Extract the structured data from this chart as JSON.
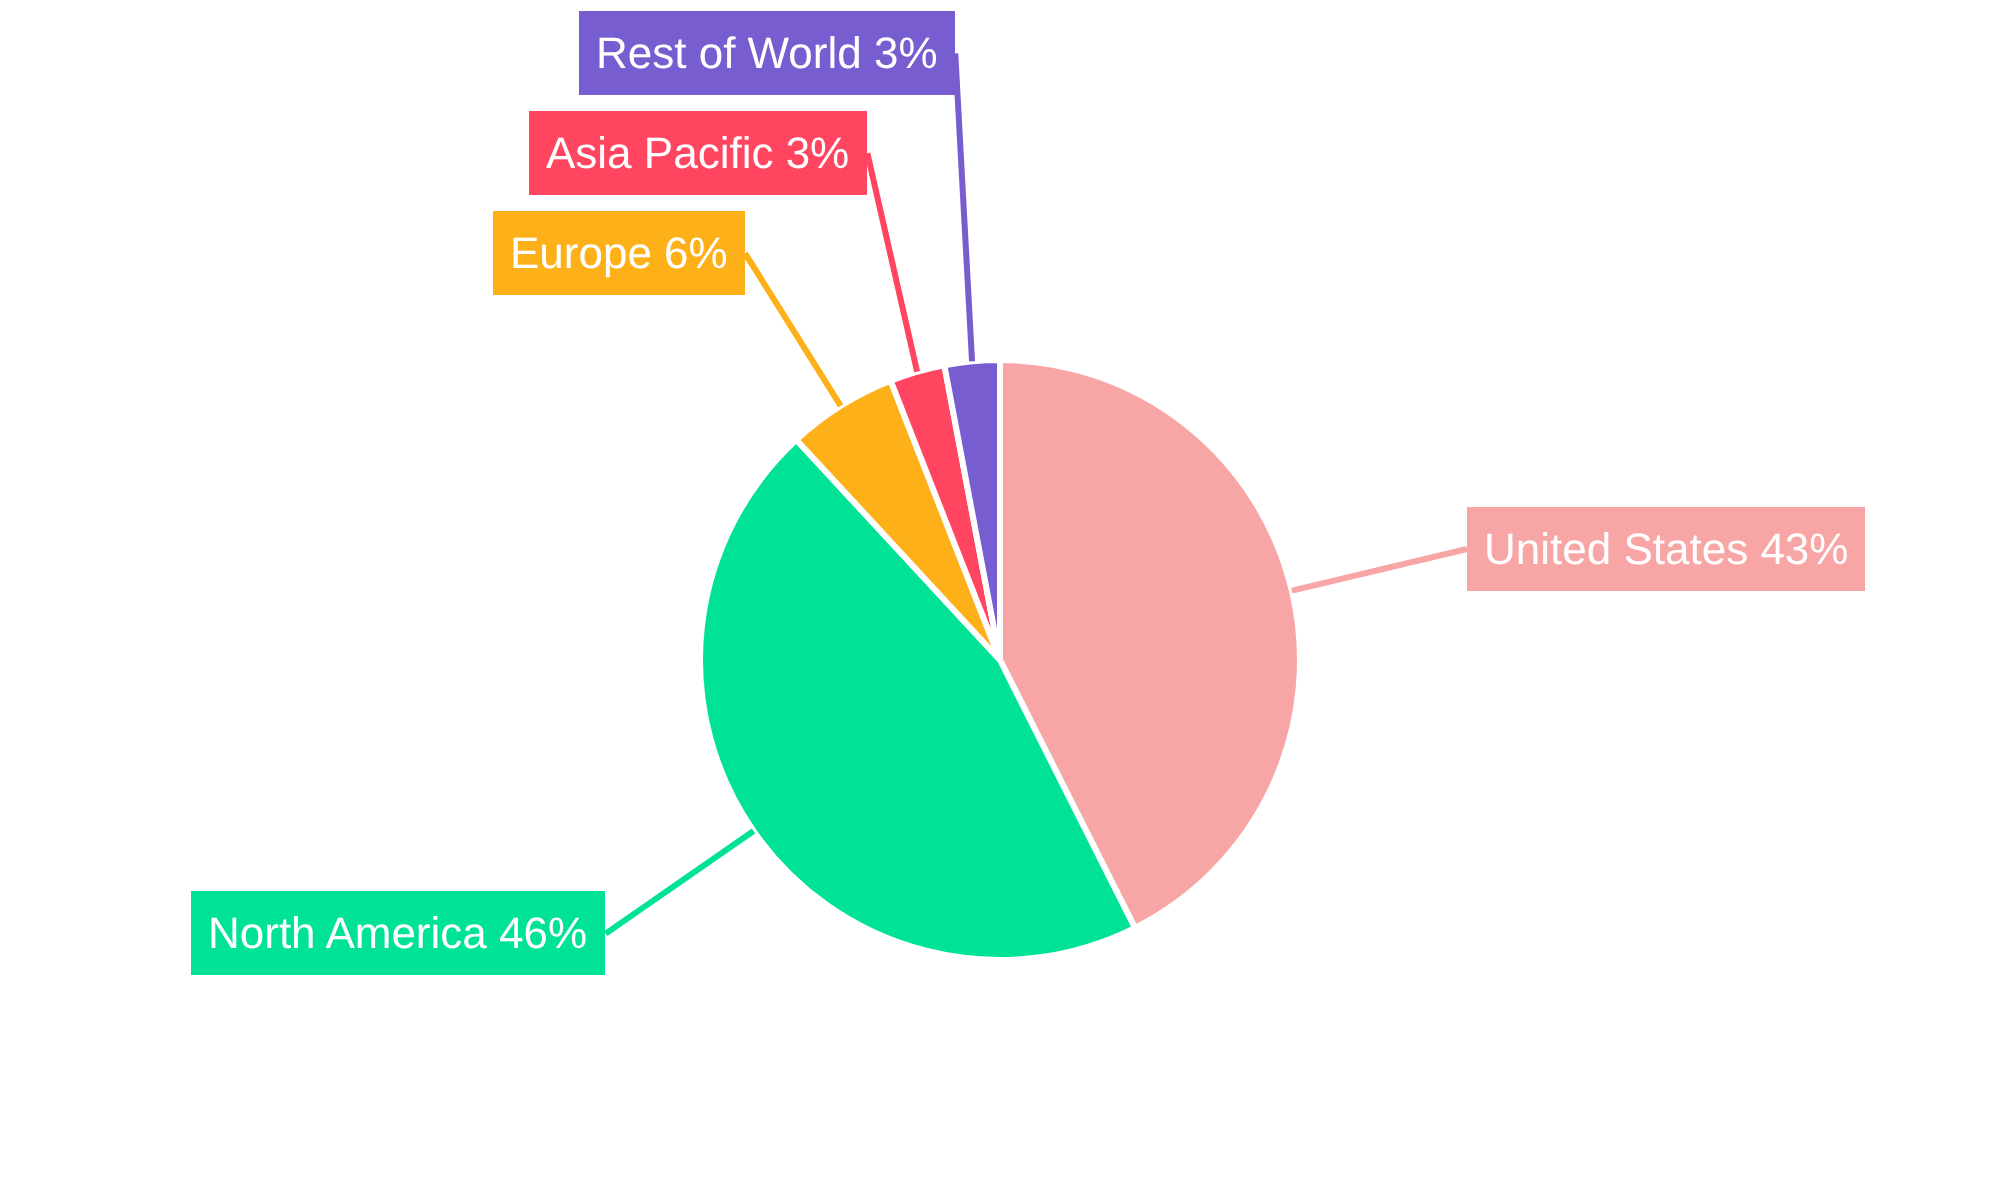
{
  "chart_data": {
    "type": "pie",
    "categories": [
      "United States",
      "North America",
      "Europe",
      "Asia Pacific",
      "Rest of World"
    ],
    "values": [
      43,
      46,
      6,
      3,
      3
    ],
    "value_labels": [
      "43%",
      "46%",
      "6%",
      "3%",
      "3%"
    ],
    "colors": [
      "#f8a5a5",
      "#00e396",
      "#feb019",
      "#ff4560",
      "#775dd0"
    ],
    "legend": false
  }
}
